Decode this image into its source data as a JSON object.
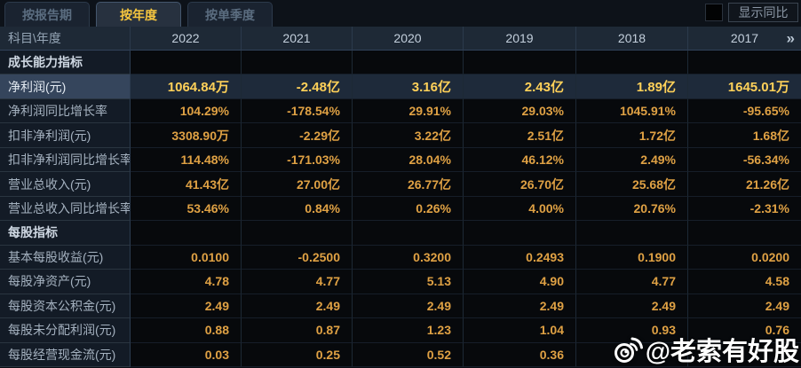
{
  "tabs": {
    "items": [
      {
        "id": "by-report-period",
        "label": "按报告期",
        "active": false
      },
      {
        "id": "by-year",
        "label": "按年度",
        "active": true
      },
      {
        "id": "by-quarter",
        "label": "按单季度",
        "active": false
      }
    ]
  },
  "controls": {
    "show_yoy_label": "显示同比",
    "checkbox_checked": false
  },
  "table": {
    "corner_label": "科目\\年度",
    "years": [
      "2022",
      "2021",
      "2020",
      "2019",
      "2018",
      "2017"
    ],
    "more_columns_icon": "»",
    "rows": [
      {
        "type": "section",
        "label": "成长能力指标",
        "highlight": false,
        "values": [
          "",
          "",
          "",
          "",
          "",
          ""
        ]
      },
      {
        "type": "data",
        "label": "净利润(元)",
        "highlight": true,
        "values": [
          "1064.84万",
          "-2.48亿",
          "3.16亿",
          "2.43亿",
          "1.89亿",
          "1645.01万"
        ]
      },
      {
        "type": "data",
        "label": "净利润同比增长率",
        "highlight": false,
        "values": [
          "104.29%",
          "-178.54%",
          "29.91%",
          "29.03%",
          "1045.91%",
          "-95.65%"
        ]
      },
      {
        "type": "data",
        "label": "扣非净利润(元)",
        "highlight": false,
        "values": [
          "3308.90万",
          "-2.29亿",
          "3.22亿",
          "2.51亿",
          "1.72亿",
          "1.68亿"
        ]
      },
      {
        "type": "data",
        "label": "扣非净利润同比增长率",
        "highlight": false,
        "values": [
          "114.48%",
          "-171.03%",
          "28.04%",
          "46.12%",
          "2.49%",
          "-56.34%"
        ]
      },
      {
        "type": "data",
        "label": "营业总收入(元)",
        "highlight": false,
        "values": [
          "41.43亿",
          "27.00亿",
          "26.77亿",
          "26.70亿",
          "25.68亿",
          "21.26亿"
        ]
      },
      {
        "type": "data",
        "label": "营业总收入同比增长率",
        "highlight": false,
        "values": [
          "53.46%",
          "0.84%",
          "0.26%",
          "4.00%",
          "20.76%",
          "-2.31%"
        ]
      },
      {
        "type": "section",
        "label": "每股指标",
        "highlight": false,
        "values": [
          "",
          "",
          "",
          "",
          "",
          ""
        ]
      },
      {
        "type": "data",
        "label": "基本每股收益(元)",
        "highlight": false,
        "values": [
          "0.0100",
          "-0.2500",
          "0.3200",
          "0.2493",
          "0.1900",
          "0.0200"
        ]
      },
      {
        "type": "data",
        "label": "每股净资产(元)",
        "highlight": false,
        "values": [
          "4.78",
          "4.77",
          "5.13",
          "4.90",
          "4.77",
          "4.58"
        ]
      },
      {
        "type": "data",
        "label": "每股资本公积金(元)",
        "highlight": false,
        "values": [
          "2.49",
          "2.49",
          "2.49",
          "2.49",
          "2.49",
          "2.49"
        ]
      },
      {
        "type": "data",
        "label": "每股未分配利润(元)",
        "highlight": false,
        "values": [
          "0.88",
          "0.87",
          "1.23",
          "1.04",
          "0.93",
          "0.76"
        ]
      },
      {
        "type": "data",
        "label": "每股经营现金流(元)",
        "highlight": false,
        "values": [
          "0.03",
          "0.25",
          "0.52",
          "0.36",
          "",
          ""
        ]
      }
    ]
  },
  "watermark": {
    "icon": "weibo-logo",
    "text": "@老索有好股"
  },
  "colors": {
    "accent_yellow": "#f6c63f",
    "value_orange": "#dfa144",
    "highlight_value_yellow": "#ffd159",
    "highlight_label_bg": "#35455c",
    "highlight_row_bg": "#1e2a3a",
    "header_bg": "#1e2936",
    "label_col_bg": "#131b26",
    "page_bg": "#0c1017"
  }
}
